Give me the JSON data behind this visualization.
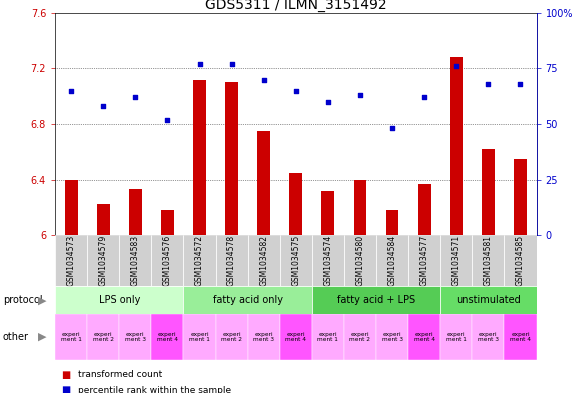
{
  "title": "GDS5311 / ILMN_3151492",
  "samples": [
    "GSM1034573",
    "GSM1034579",
    "GSM1034583",
    "GSM1034576",
    "GSM1034572",
    "GSM1034578",
    "GSM1034582",
    "GSM1034575",
    "GSM1034574",
    "GSM1034580",
    "GSM1034584",
    "GSM1034577",
    "GSM1034571",
    "GSM1034581",
    "GSM1034585"
  ],
  "transformed_count": [
    6.4,
    6.22,
    6.33,
    6.18,
    7.12,
    7.1,
    6.75,
    6.45,
    6.32,
    6.4,
    6.18,
    6.37,
    7.28,
    6.62,
    6.55
  ],
  "percentile_rank": [
    65,
    58,
    62,
    52,
    77,
    77,
    70,
    65,
    60,
    63,
    48,
    62,
    76,
    68,
    68
  ],
  "bar_color": "#cc0000",
  "dot_color": "#0000cc",
  "ylim_left": [
    6.0,
    7.6
  ],
  "ylim_right": [
    0,
    100
  ],
  "yticks_left": [
    6.0,
    6.4,
    6.8,
    7.2,
    7.6
  ],
  "yticks_right": [
    0,
    25,
    50,
    75,
    100
  ],
  "ytick_labels_left": [
    "6",
    "6.4",
    "6.8",
    "7.2",
    "7.6"
  ],
  "ytick_labels_right": [
    "0",
    "25",
    "50",
    "75",
    "100%"
  ],
  "protocol_groups": [
    {
      "label": "LPS only",
      "start": 0,
      "end": 3,
      "color": "#ccffcc"
    },
    {
      "label": "fatty acid only",
      "start": 4,
      "end": 7,
      "color": "#99ee99"
    },
    {
      "label": "fatty acid + LPS",
      "start": 8,
      "end": 11,
      "color": "#55cc55"
    },
    {
      "label": "unstimulated",
      "start": 12,
      "end": 14,
      "color": "#66dd66"
    }
  ],
  "other_colors": [
    "#ffaaff",
    "#ffaaff",
    "#ffaaff",
    "#ff55ff",
    "#ffaaff",
    "#ffaaff",
    "#ffaaff",
    "#ff55ff",
    "#ffaaff",
    "#ffaaff",
    "#ffaaff",
    "#ff55ff",
    "#ffaaff",
    "#ffaaff",
    "#ff55ff"
  ],
  "other_labels": [
    "experi\nment 1",
    "experi\nment 2",
    "experi\nment 3",
    "experi\nment 4",
    "experi\nment 1",
    "experi\nment 2",
    "experi\nment 3",
    "experi\nment 4",
    "experi\nment 1",
    "experi\nment 2",
    "experi\nment 3",
    "experi\nment 4",
    "experi\nment 1",
    "experi\nment 3",
    "experi\nment 4"
  ],
  "protocol_label": "protocol",
  "other_label": "other",
  "legend_items": [
    {
      "color": "#cc0000",
      "label": "transformed count"
    },
    {
      "color": "#0000cc",
      "label": "percentile rank within the sample"
    }
  ],
  "bg_color": "#ffffff",
  "plot_bg_color": "#ffffff",
  "grid_color": "#333333",
  "title_fontsize": 10,
  "tick_fontsize": 7,
  "bar_width": 0.4
}
